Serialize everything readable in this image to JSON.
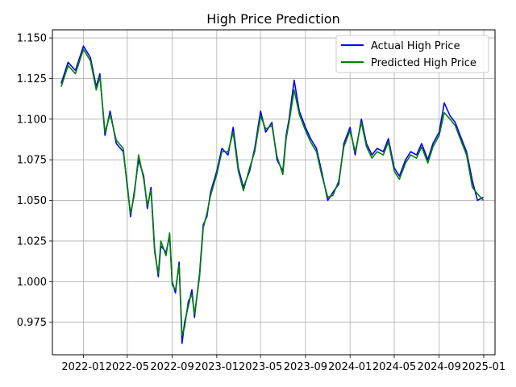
{
  "chart_data": {
    "type": "line",
    "title": "High Price Prediction",
    "xlabel": "",
    "ylabel": "",
    "x_ticks": [
      "2022-01",
      "2022-05",
      "2022-09",
      "2023-01",
      "2023-05",
      "2023-09",
      "2024-01",
      "2024-05",
      "2024-09",
      "2025-01"
    ],
    "y_ticks": [
      "0.975",
      "1.000",
      "1.025",
      "1.050",
      "1.075",
      "1.100",
      "1.125",
      "1.150"
    ],
    "x_range": [
      "2021-10-08",
      "2025-02-01"
    ],
    "ylim": [
      0.955,
      1.155
    ],
    "grid": true,
    "legend_position": "top-right",
    "dates": [
      "2021-11-01",
      "2021-11-20",
      "2021-12-10",
      "2022-01-01",
      "2022-01-20",
      "2022-02-05",
      "2022-02-15",
      "2022-03-01",
      "2022-03-15",
      "2022-04-01",
      "2022-04-20",
      "2022-05-01",
      "2022-05-10",
      "2022-05-20",
      "2022-06-01",
      "2022-06-15",
      "2022-06-25",
      "2022-07-05",
      "2022-07-15",
      "2022-07-25",
      "2022-08-01",
      "2022-08-15",
      "2022-08-25",
      "2022-09-01",
      "2022-09-10",
      "2022-09-20",
      "2022-09-28",
      "2022-10-05",
      "2022-10-15",
      "2022-10-25",
      "2022-11-01",
      "2022-11-15",
      "2022-11-25",
      "2022-12-05",
      "2022-12-15",
      "2023-01-01",
      "2023-01-15",
      "2023-02-01",
      "2023-02-15",
      "2023-03-01",
      "2023-03-15",
      "2023-04-01",
      "2023-04-15",
      "2023-05-01",
      "2023-05-15",
      "2023-06-01",
      "2023-06-15",
      "2023-07-01",
      "2023-07-10",
      "2023-07-18",
      "2023-08-01",
      "2023-08-15",
      "2023-09-01",
      "2023-09-15",
      "2023-10-01",
      "2023-10-15",
      "2023-11-01",
      "2023-11-15",
      "2023-12-01",
      "2023-12-15",
      "2024-01-01",
      "2024-01-15",
      "2024-02-01",
      "2024-02-15",
      "2024-03-01",
      "2024-03-15",
      "2024-04-01",
      "2024-04-15",
      "2024-05-01",
      "2024-05-15",
      "2024-06-01",
      "2024-06-15",
      "2024-07-01",
      "2024-07-15",
      "2024-08-01",
      "2024-08-15",
      "2024-09-01",
      "2024-09-15",
      "2024-10-01",
      "2024-10-15",
      "2024-11-01",
      "2024-11-15",
      "2024-12-01",
      "2024-12-15",
      "2024-12-31"
    ],
    "series": [
      {
        "name": "Actual High Price",
        "color": "#0000ff",
        "values": [
          1.122,
          1.135,
          1.13,
          1.145,
          1.138,
          1.12,
          1.128,
          1.09,
          1.105,
          1.085,
          1.08,
          1.06,
          1.04,
          1.055,
          1.075,
          1.065,
          1.045,
          1.058,
          1.02,
          1.003,
          1.022,
          1.018,
          1.028,
          1.0,
          0.993,
          1.012,
          0.962,
          0.975,
          0.985,
          0.995,
          0.978,
          1.005,
          1.035,
          1.04,
          1.055,
          1.068,
          1.082,
          1.078,
          1.095,
          1.07,
          1.058,
          1.068,
          1.082,
          1.105,
          1.092,
          1.098,
          1.075,
          1.068,
          1.09,
          1.1,
          1.124,
          1.105,
          1.095,
          1.088,
          1.082,
          1.068,
          1.05,
          1.055,
          1.06,
          1.085,
          1.095,
          1.078,
          1.1,
          1.085,
          1.078,
          1.082,
          1.08,
          1.088,
          1.07,
          1.065,
          1.075,
          1.08,
          1.078,
          1.085,
          1.075,
          1.085,
          1.092,
          1.11,
          1.102,
          1.098,
          1.088,
          1.08,
          1.062,
          1.05,
          1.052
        ]
      },
      {
        "name": "Predicted High Price",
        "color": "#008000",
        "values": [
          1.12,
          1.133,
          1.128,
          1.143,
          1.136,
          1.118,
          1.126,
          1.092,
          1.103,
          1.087,
          1.082,
          1.058,
          1.042,
          1.053,
          1.078,
          1.063,
          1.047,
          1.056,
          1.018,
          1.005,
          1.025,
          1.016,
          1.03,
          0.998,
          0.995,
          1.01,
          0.967,
          0.972,
          0.988,
          0.992,
          0.98,
          1.003,
          1.033,
          1.042,
          1.053,
          1.066,
          1.08,
          1.08,
          1.092,
          1.068,
          1.056,
          1.07,
          1.08,
          1.102,
          1.094,
          1.096,
          1.077,
          1.066,
          1.088,
          1.098,
          1.118,
          1.103,
          1.093,
          1.086,
          1.08,
          1.066,
          1.052,
          1.053,
          1.062,
          1.083,
          1.093,
          1.08,
          1.098,
          1.083,
          1.076,
          1.08,
          1.078,
          1.086,
          1.068,
          1.063,
          1.073,
          1.078,
          1.076,
          1.083,
          1.073,
          1.083,
          1.09,
          1.104,
          1.1,
          1.096,
          1.086,
          1.078,
          1.058,
          1.054,
          1.05
        ]
      }
    ]
  }
}
